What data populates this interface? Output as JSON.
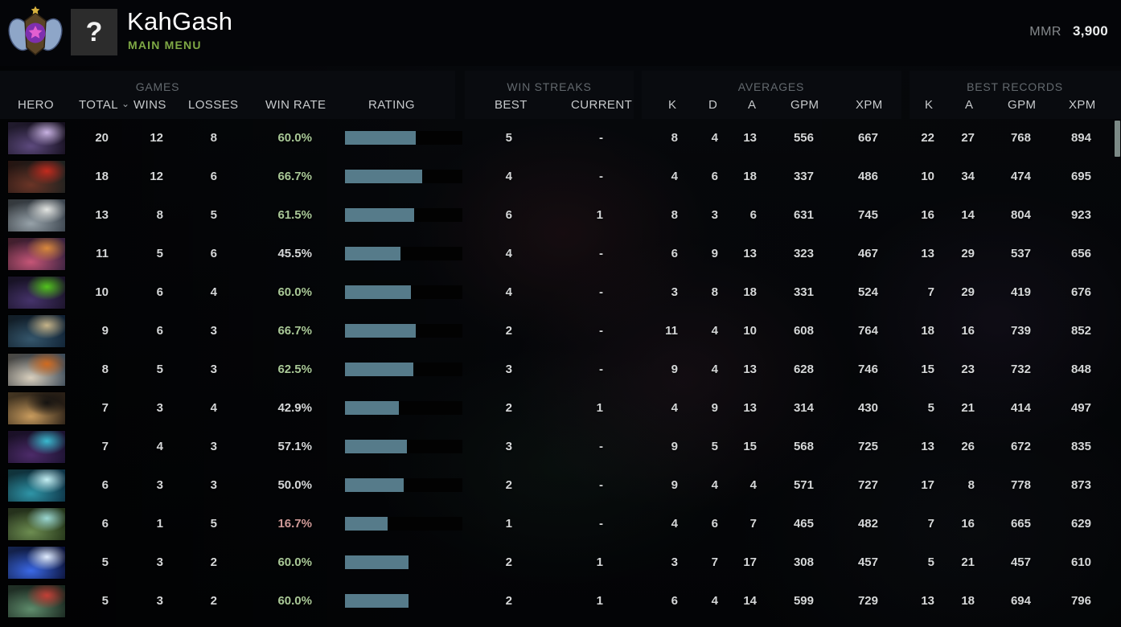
{
  "colors": {
    "accent_green": "#7fa945",
    "win_green": "#a9c897",
    "win_red": "#cf9a98",
    "bar_fill": "#567b8a",
    "thumb": "#7c8a87"
  },
  "header": {
    "player_name": "KahGash",
    "menu_label": "MAIN MENU",
    "avatar_text": "?",
    "mmr_label": "MMR",
    "mmr_value": "3,900"
  },
  "table": {
    "sort_indicator": "⌄",
    "groups": {
      "games": "GAMES",
      "win_streaks": "WIN STREAKS",
      "averages": "AVERAGES",
      "best_records": "BEST RECORDS"
    },
    "columns": {
      "hero": "HERO",
      "total": "TOTAL",
      "wins": "WINS",
      "losses": "LOSSES",
      "win_rate": "WIN RATE",
      "rating": "RATING",
      "best": "BEST",
      "current": "CURRENT",
      "k": "K",
      "d": "D",
      "a": "A",
      "gpm": "GPM",
      "xpm": "XPM",
      "rec_k": "K",
      "rec_a": "A",
      "rec_gpm": "GPM",
      "rec_xpm": "XPM"
    },
    "rows": [
      {
        "total": "20",
        "wins": "12",
        "losses": "8",
        "win_rate": "60.0%",
        "win_rate_tone": "green",
        "rating_percent": 60,
        "rating_has_track": true,
        "streak_best": "5",
        "streak_current": "-",
        "avg_k": "8",
        "avg_d": "4",
        "avg_a": "13",
        "avg_gpm": "556",
        "avg_xpm": "667",
        "best_k": "22",
        "best_a": "27",
        "best_gpm": "768",
        "best_xpm": "894",
        "portrait_colors": [
          "#150f1e",
          "#5d4a7e",
          "#c8b2e2"
        ]
      },
      {
        "total": "18",
        "wins": "12",
        "losses": "6",
        "win_rate": "66.7%",
        "win_rate_tone": "green",
        "rating_percent": 66,
        "rating_has_track": true,
        "streak_best": "4",
        "streak_current": "-",
        "avg_k": "4",
        "avg_d": "6",
        "avg_a": "18",
        "avg_gpm": "337",
        "avg_xpm": "486",
        "best_k": "10",
        "best_a": "34",
        "best_gpm": "474",
        "best_xpm": "695",
        "portrait_colors": [
          "#1d211f",
          "#6b3426",
          "#c22b1e"
        ]
      },
      {
        "total": "13",
        "wins": "8",
        "losses": "5",
        "win_rate": "61.5%",
        "win_rate_tone": "green",
        "rating_percent": 59,
        "rating_has_track": true,
        "streak_best": "6",
        "streak_current": "1",
        "avg_k": "8",
        "avg_d": "3",
        "avg_a": "6",
        "avg_gpm": "631",
        "avg_xpm": "745",
        "best_k": "16",
        "best_a": "14",
        "best_gpm": "804",
        "best_xpm": "923",
        "portrait_colors": [
          "#39424c",
          "#97a2a9",
          "#e3e5e2"
        ]
      },
      {
        "total": "11",
        "wins": "5",
        "losses": "6",
        "win_rate": "45.5%",
        "win_rate_tone": "neutral",
        "rating_percent": 47,
        "rating_has_track": true,
        "streak_best": "4",
        "streak_current": "-",
        "avg_k": "6",
        "avg_d": "9",
        "avg_a": "13",
        "avg_gpm": "323",
        "avg_xpm": "467",
        "best_k": "13",
        "best_a": "29",
        "best_gpm": "537",
        "best_xpm": "656",
        "portrait_colors": [
          "#38213f",
          "#c65677",
          "#d9893c"
        ]
      },
      {
        "total": "10",
        "wins": "6",
        "losses": "4",
        "win_rate": "60.0%",
        "win_rate_tone": "green",
        "rating_percent": 56,
        "rating_has_track": true,
        "streak_best": "4",
        "streak_current": "-",
        "avg_k": "3",
        "avg_d": "8",
        "avg_a": "18",
        "avg_gpm": "331",
        "avg_xpm": "524",
        "best_k": "7",
        "best_a": "29",
        "best_gpm": "419",
        "best_xpm": "676",
        "portrait_colors": [
          "#1b132a",
          "#45336a",
          "#52c31d"
        ]
      },
      {
        "total": "9",
        "wins": "6",
        "losses": "3",
        "win_rate": "66.7%",
        "win_rate_tone": "green",
        "rating_percent": 60,
        "rating_has_track": true,
        "streak_best": "2",
        "streak_current": "-",
        "avg_k": "11",
        "avg_d": "4",
        "avg_a": "10",
        "avg_gpm": "608",
        "avg_xpm": "764",
        "best_k": "18",
        "best_a": "16",
        "best_gpm": "739",
        "best_xpm": "852",
        "portrait_colors": [
          "#102235",
          "#35566b",
          "#c6b489"
        ]
      },
      {
        "total": "8",
        "wins": "5",
        "losses": "3",
        "win_rate": "62.5%",
        "win_rate_tone": "green",
        "rating_percent": 58,
        "rating_has_track": true,
        "streak_best": "3",
        "streak_current": "-",
        "avg_k": "9",
        "avg_d": "4",
        "avg_a": "13",
        "avg_gpm": "628",
        "avg_xpm": "746",
        "best_k": "15",
        "best_a": "23",
        "best_gpm": "732",
        "best_xpm": "848",
        "portrait_colors": [
          "#3e4c5a",
          "#d9cfbd",
          "#d06a1f"
        ]
      },
      {
        "total": "7",
        "wins": "3",
        "losses": "4",
        "win_rate": "42.9%",
        "win_rate_tone": "neutral",
        "rating_percent": 46,
        "rating_has_track": true,
        "streak_best": "2",
        "streak_current": "1",
        "avg_k": "4",
        "avg_d": "9",
        "avg_a": "13",
        "avg_gpm": "314",
        "avg_xpm": "430",
        "best_k": "5",
        "best_a": "21",
        "best_gpm": "414",
        "best_xpm": "497",
        "portrait_colors": [
          "#291f16",
          "#c99c5e",
          "#141210"
        ]
      },
      {
        "total": "7",
        "wins": "4",
        "losses": "3",
        "win_rate": "57.1%",
        "win_rate_tone": "neutral",
        "rating_percent": 53,
        "rating_has_track": true,
        "streak_best": "3",
        "streak_current": "-",
        "avg_k": "9",
        "avg_d": "5",
        "avg_a": "15",
        "avg_gpm": "568",
        "avg_xpm": "725",
        "best_k": "13",
        "best_a": "26",
        "best_gpm": "672",
        "best_xpm": "835",
        "portrait_colors": [
          "#1b1230",
          "#4c2b69",
          "#3ab9cf"
        ]
      },
      {
        "total": "6",
        "wins": "3",
        "losses": "3",
        "win_rate": "50.0%",
        "win_rate_tone": "neutral",
        "rating_percent": 50,
        "rating_has_track": true,
        "streak_best": "2",
        "streak_current": "-",
        "avg_k": "9",
        "avg_d": "4",
        "avg_a": "4",
        "avg_gpm": "571",
        "avg_xpm": "727",
        "best_k": "17",
        "best_a": "8",
        "best_gpm": "778",
        "best_xpm": "873",
        "portrait_colors": [
          "#0c3144",
          "#2f95a7",
          "#c4eff3"
        ]
      },
      {
        "total": "6",
        "wins": "1",
        "losses": "5",
        "win_rate": "16.7%",
        "win_rate_tone": "red",
        "rating_percent": 36,
        "rating_has_track": true,
        "streak_best": "1",
        "streak_current": "-",
        "avg_k": "4",
        "avg_d": "6",
        "avg_a": "7",
        "avg_gpm": "465",
        "avg_xpm": "482",
        "best_k": "7",
        "best_a": "16",
        "best_gpm": "665",
        "best_xpm": "629",
        "portrait_colors": [
          "#233418",
          "#6d8d51",
          "#9bd8d3"
        ]
      },
      {
        "total": "5",
        "wins": "3",
        "losses": "2",
        "win_rate": "60.0%",
        "win_rate_tone": "green",
        "rating_percent": 54,
        "rating_has_track": false,
        "streak_best": "2",
        "streak_current": "1",
        "avg_k": "3",
        "avg_d": "7",
        "avg_a": "17",
        "avg_gpm": "308",
        "avg_xpm": "457",
        "best_k": "5",
        "best_a": "21",
        "best_gpm": "457",
        "best_xpm": "610",
        "portrait_colors": [
          "#0a1138",
          "#3b69e6",
          "#e0ecff"
        ]
      },
      {
        "total": "5",
        "wins": "3",
        "losses": "2",
        "win_rate": "60.0%",
        "win_rate_tone": "green",
        "rating_percent": 54,
        "rating_has_track": false,
        "streak_best": "2",
        "streak_current": "1",
        "avg_k": "6",
        "avg_d": "4",
        "avg_a": "14",
        "avg_gpm": "599",
        "avg_xpm": "729",
        "best_k": "13",
        "best_a": "18",
        "best_gpm": "694",
        "best_xpm": "796",
        "portrait_colors": [
          "#19271f",
          "#5f8c6c",
          "#c43f36"
        ]
      }
    ]
  }
}
